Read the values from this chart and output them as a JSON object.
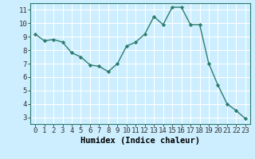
{
  "x": [
    0,
    1,
    2,
    3,
    4,
    5,
    6,
    7,
    8,
    9,
    10,
    11,
    12,
    13,
    14,
    15,
    16,
    17,
    18,
    19,
    20,
    21,
    22,
    23
  ],
  "y": [
    9.2,
    8.7,
    8.8,
    8.6,
    7.8,
    7.5,
    6.9,
    6.8,
    6.4,
    7.0,
    8.3,
    8.6,
    9.2,
    10.5,
    9.9,
    11.2,
    11.2,
    9.9,
    9.9,
    7.0,
    5.4,
    4.0,
    3.5,
    2.9
  ],
  "line_color": "#2d7d6e",
  "marker": "D",
  "marker_size": 2.2,
  "bg_color": "#cceeff",
  "grid_color": "#ffffff",
  "xlabel": "Humidex (Indice chaleur)",
  "xlabel_fontsize": 7.5,
  "tick_fontsize": 6.5,
  "xlim": [
    -0.5,
    23.5
  ],
  "ylim": [
    2.5,
    11.5
  ],
  "yticks": [
    3,
    4,
    5,
    6,
    7,
    8,
    9,
    10,
    11
  ],
  "xticks": [
    0,
    1,
    2,
    3,
    4,
    5,
    6,
    7,
    8,
    9,
    10,
    11,
    12,
    13,
    14,
    15,
    16,
    17,
    18,
    19,
    20,
    21,
    22,
    23
  ]
}
